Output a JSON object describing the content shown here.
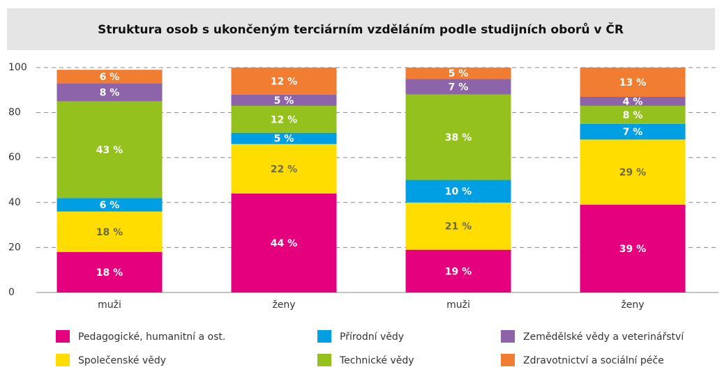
{
  "chart_data": {
    "type": "stacked_bar",
    "title": "Struktura osob s ukončeným terciárním vzděláním podle studijních oborů v ČR",
    "categories": [
      "muži",
      "ženy",
      "muži",
      "ženy"
    ],
    "series": [
      {
        "name": "Pedagogické, humanitní a ost.",
        "color": "#e5007e",
        "values": [
          18,
          44,
          19,
          39
        ],
        "value_labels": [
          "18 %",
          "44 %",
          "19 %",
          "39 %"
        ]
      },
      {
        "name": "Společenské vědy",
        "color": "#ffdd00",
        "values": [
          18,
          22,
          21,
          29
        ],
        "value_labels": [
          "18 %",
          "22 %",
          "21 %",
          "29 %"
        ]
      },
      {
        "name": "Přírodní vědy",
        "color": "#009fe3",
        "values": [
          6,
          5,
          10,
          7
        ],
        "value_labels": [
          "6 %",
          "5 %",
          "10 %",
          "7 %"
        ]
      },
      {
        "name": "Technické vědy",
        "color": "#95c11f",
        "values": [
          43,
          12,
          38,
          8
        ],
        "value_labels": [
          "43 %",
          "12 %",
          "38 %",
          "8 %"
        ]
      },
      {
        "name": "Zemědělské vědy a veterinářství",
        "color": "#8d64aa",
        "values": [
          8,
          5,
          7,
          4
        ],
        "value_labels": [
          "8 %",
          "5 %",
          "7 %",
          "4 %"
        ]
      },
      {
        "name": "Zdravotnictví a sociální péče",
        "color": "#f07d32",
        "values": [
          6,
          12,
          5,
          13
        ],
        "value_labels": [
          "6 %",
          "12 %",
          "5 %",
          "13 %"
        ]
      }
    ],
    "ylim": [
      0,
      100
    ],
    "yticks": [
      0,
      20,
      40,
      60,
      80,
      100
    ],
    "grid": true,
    "legend": "bottom"
  }
}
